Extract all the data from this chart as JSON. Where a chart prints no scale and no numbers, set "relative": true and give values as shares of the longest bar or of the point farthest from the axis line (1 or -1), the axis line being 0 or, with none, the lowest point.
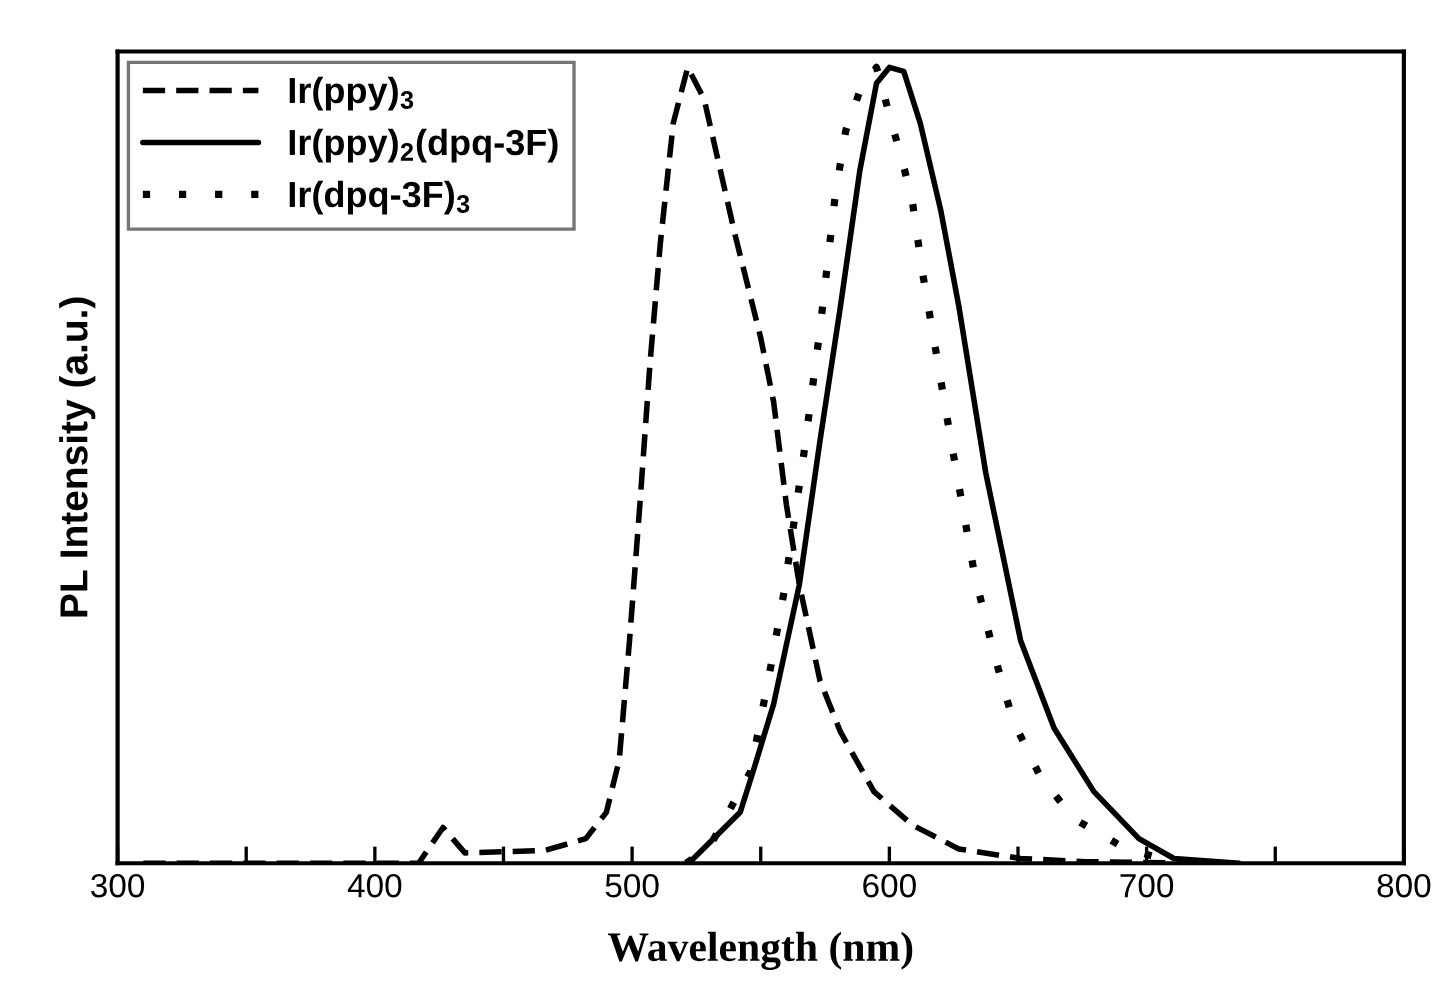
{
  "chart_data": {
    "type": "line",
    "relative": true,
    "xlabel": "Wavelength (nm)",
    "ylabel": "PL Intensity (a.u.)",
    "xlim": [
      300,
      800
    ],
    "xticks": [
      300,
      {
        "value": 350,
        "label": null
      },
      400,
      {
        "value": 450,
        "label": null
      },
      500,
      {
        "value": 550,
        "label": null
      },
      600,
      {
        "value": 650,
        "label": null
      },
      700,
      {
        "value": 750,
        "label": null
      },
      800
    ],
    "tick_labels": "x",
    "legend": "top left",
    "grid": false,
    "series": [
      {
        "name": "Ir(ppy)$_{3}$",
        "color": "#000000",
        "line_style": "dashed",
        "x": [
          310,
          417,
          426.5,
          435,
          466,
          482,
          490,
          495,
          499,
          503,
          507,
          511,
          516,
          521.6,
          528,
          534,
          540,
          550,
          555,
          560,
          565,
          573,
          581,
          594,
          609,
          627,
          651,
          676,
          723
        ],
        "values": [
          0,
          0,
          0.045,
          0.013,
          0.016,
          0.031,
          0.064,
          0.13,
          0.28,
          0.45,
          0.63,
          0.78,
          0.93,
          1.0,
          0.96,
          0.875,
          0.79,
          0.66,
          0.58,
          0.45,
          0.35,
          0.23,
          0.165,
          0.09,
          0.048,
          0.018,
          0.006,
          0.002,
          0
        ]
      },
      {
        "name": "Ir(ppy)$_{2}$(dpq-3F)",
        "color": "#000000",
        "line_style": "solid",
        "x": [
          522,
          542,
          547,
          555,
          565,
          573,
          581,
          588.5,
          595,
          600,
          605.6,
          612,
          620,
          627,
          637.5,
          651,
          664,
          679.5,
          697,
          710.6,
          736
        ],
        "values": [
          0,
          0.064,
          0.115,
          0.2,
          0.35,
          0.53,
          0.7,
          0.87,
          0.98,
          1.0,
          0.995,
          0.93,
          0.82,
          0.7,
          0.49,
          0.28,
          0.17,
          0.09,
          0.031,
          0.006,
          0
        ]
      },
      {
        "name": "Ir(dpq-3F)$_{3}$",
        "color": "#000000",
        "line_style": "dotted",
        "x": [
          521,
          530,
          546,
          553.5,
          559,
          567,
          573,
          579,
          583,
          588.5,
          595,
          606,
          609,
          613,
          618,
          624,
          633,
          640.5,
          648,
          658.5,
          671.7,
          692,
          710.6
        ],
        "values": [
          0,
          0.02,
          0.115,
          0.24,
          0.34,
          0.52,
          0.67,
          0.84,
          0.92,
          0.97,
          1.0,
          0.87,
          0.83,
          0.74,
          0.645,
          0.53,
          0.365,
          0.265,
          0.18,
          0.11,
          0.056,
          0.018,
          0.002
        ]
      }
    ]
  }
}
